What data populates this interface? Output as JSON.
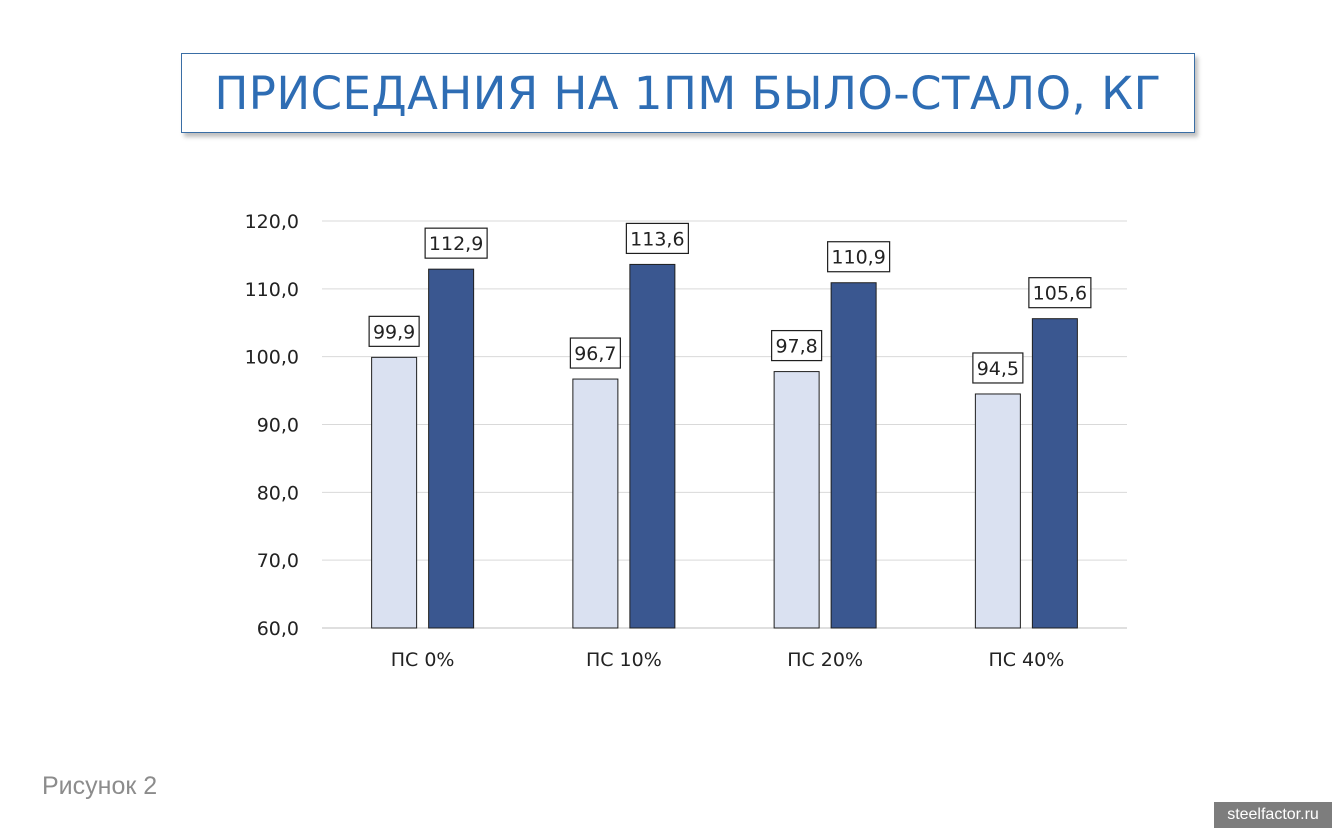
{
  "title": "ПРИСЕДАНИЯ НА 1ПМ БЫЛО-СТАЛО, КГ",
  "caption": "Рисунок 2",
  "watermark": "steelfactor.ru",
  "colors": {
    "title": "#2e6db4",
    "before": "#dae1f1",
    "after": "#3a5790",
    "grid": "#d9d9d9"
  },
  "chart_data": {
    "type": "bar",
    "title": "ПРИСЕДАНИЯ НА 1ПМ БЫЛО-СТАЛО, КГ",
    "categories": [
      "ПС 0%",
      "ПС 10%",
      "ПС 20%",
      "ПС 40%"
    ],
    "series": [
      {
        "values": [
          99.9,
          96.7,
          97.8,
          94.5
        ],
        "labels": [
          "99,9",
          "96,7",
          "97,8",
          "94,5"
        ]
      },
      {
        "values": [
          112.9,
          113.6,
          110.9,
          105.6
        ],
        "labels": [
          "112,9",
          "113,6",
          "110,9",
          "105,6"
        ]
      }
    ],
    "yticks": [
      "60,0",
      "70,0",
      "80,0",
      "90,0",
      "100,0",
      "110,0",
      "120,0"
    ],
    "ylim": [
      60,
      120
    ],
    "xlabel": "",
    "ylabel": "",
    "grid": true,
    "legend": "none"
  }
}
